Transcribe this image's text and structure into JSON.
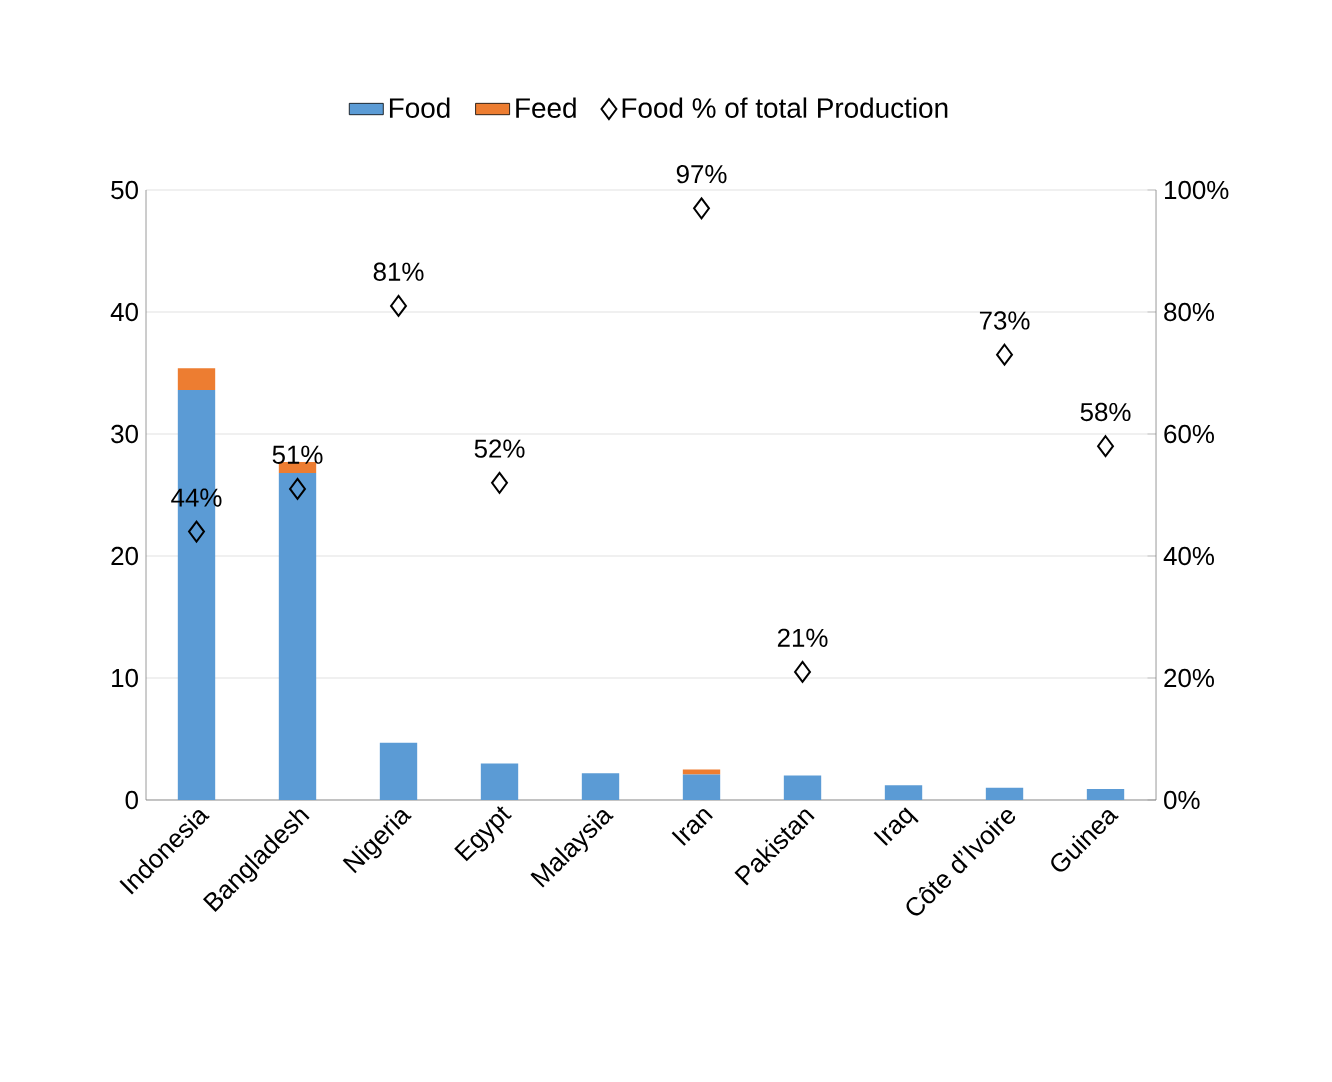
{
  "chart_data": {
    "type": "bar",
    "stacked": true,
    "categories": [
      "Indonesia",
      "Bangladesh",
      "Nigeria",
      "Egypt",
      "Malaysia",
      "Iran",
      "Pakistan",
      "Iraq",
      "Côte d’Ivoire",
      "Guinea"
    ],
    "series": [
      {
        "name": "Food",
        "color": "#5b9bd5",
        "values": [
          33.6,
          26.8,
          4.7,
          3.0,
          2.2,
          2.1,
          2.0,
          1.2,
          1.0,
          0.9
        ]
      },
      {
        "name": "Feed",
        "color": "#ed7d31",
        "values": [
          1.8,
          0.9,
          null,
          null,
          null,
          0.4,
          null,
          null,
          null,
          null
        ]
      },
      {
        "name": "Food % of total Production",
        "type": "scatter",
        "axis": "y2",
        "marker": "diamond",
        "color": "#000000",
        "values": [
          44,
          51,
          81,
          52,
          null,
          97,
          21,
          null,
          73,
          58
        ],
        "value_labels": [
          "44%",
          "51%",
          "81%",
          "52%",
          null,
          "97%",
          "21%",
          null,
          "73%",
          "58%"
        ]
      }
    ],
    "ylim": [
      0,
      50
    ],
    "yticks": [
      0,
      10,
      20,
      30,
      40,
      50
    ],
    "y2lim": [
      0,
      100
    ],
    "y2ticks": [
      {
        "value": 0,
        "label": "0%"
      },
      {
        "value": 20,
        "label": "20%"
      },
      {
        "value": 40,
        "label": "40%"
      },
      {
        "value": 60,
        "label": "60%"
      },
      {
        "value": 80,
        "label": "80%"
      },
      {
        "value": 100,
        "label": "100%"
      }
    ],
    "grid": "y",
    "legend": "top"
  }
}
